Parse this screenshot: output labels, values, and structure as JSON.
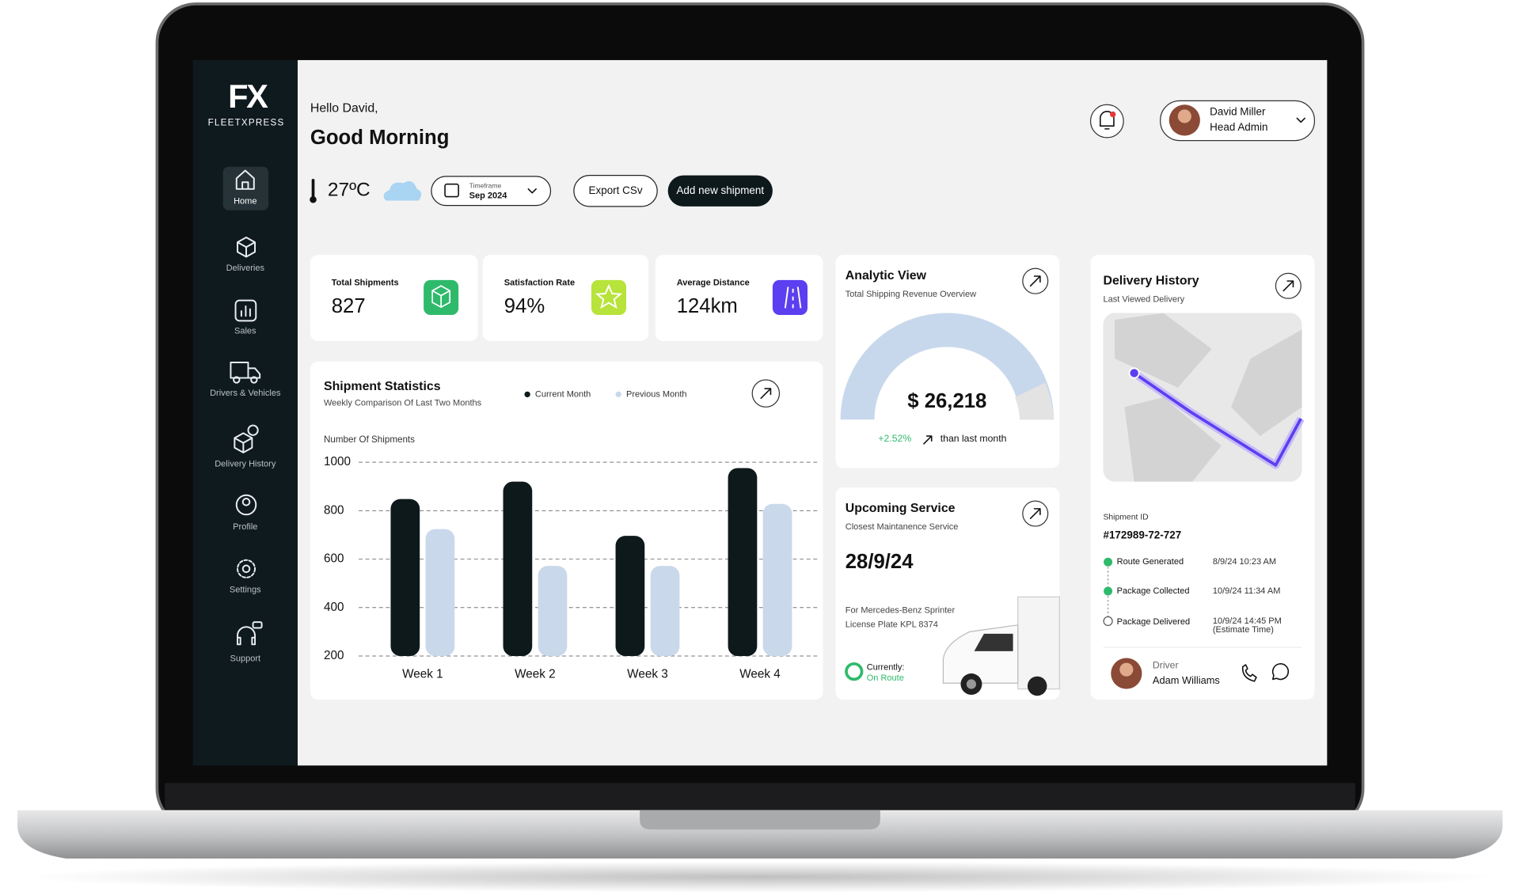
{
  "sidebar": {
    "logo": "FX",
    "brand": "FLEETXPRESS",
    "nav": [
      "Home",
      "Deliveries",
      "Sales",
      "Drivers & Vehicles",
      "Delivery History",
      "Profile",
      "Settings",
      "Support"
    ]
  },
  "header": {
    "greeting": "Hello David,",
    "title": "Good Morning",
    "temperature": "27ºC",
    "timeframe_label": "Timeframe",
    "timeframe_value": "Sep 2024",
    "export_button": "Export CSv",
    "add_button": "Add new shipment",
    "user_name": "David Miller",
    "user_role": "Head Admin"
  },
  "stats": [
    {
      "label": "Total Shipments",
      "value": "827"
    },
    {
      "label": "Satisfaction Rate",
      "value": "94%"
    },
    {
      "label": "Average Distance",
      "value": "124km"
    }
  ],
  "shipment_statistics": {
    "title": "Shipment Statistics",
    "subtitle": "Weekly Comparison Of Last Two Months",
    "y_axis_label": "Number Of Shipments",
    "chart": {
      "type": "bar",
      "categories": [
        "Week 1",
        "Week 2",
        "Week 3",
        "Week 4"
      ],
      "series": [
        {
          "name": "Current Month",
          "color": "#0e191c",
          "values": [
            848,
            920,
            696,
            976
          ]
        },
        {
          "name": "Previous Month",
          "color": "#c9d8ea",
          "values": [
            724,
            572,
            572,
            828
          ]
        }
      ],
      "ylim": [
        200,
        1000
      ],
      "yticks": [
        200,
        400,
        600,
        800,
        1000
      ],
      "grid": true
    }
  },
  "analytic_view": {
    "title": "Analytic View",
    "subtitle": "Total Shipping Revenue Overview",
    "amount": "$ 26,218",
    "change": "+2.52%",
    "change_text": "than last month"
  },
  "upcoming_service": {
    "title": "Upcoming Service",
    "subtitle": "Closest Maintanence Service",
    "date": "28/9/24",
    "vehicle": "For Mercedes-Benz Sprinter",
    "plate": "License Plate KPL 8374",
    "status_label": "Currently:",
    "status": "On Route"
  },
  "delivery_history": {
    "title": "Delivery History",
    "subtitle": "Last Viewed Delivery",
    "shipment_id_label": "Shipment ID",
    "shipment_id": "#172989-72-727",
    "steps": [
      {
        "label": "Route Generated",
        "time": "8/9/24 10:23 AM"
      },
      {
        "label": "Package Collected",
        "time": "10/9/24 11:34 AM"
      },
      {
        "label": "Package Delivered",
        "time": "10/9/24 14:45 PM",
        "note": "(Estimate Time)"
      }
    ],
    "driver_label": "Driver",
    "driver_name": "Adam Williams"
  }
}
